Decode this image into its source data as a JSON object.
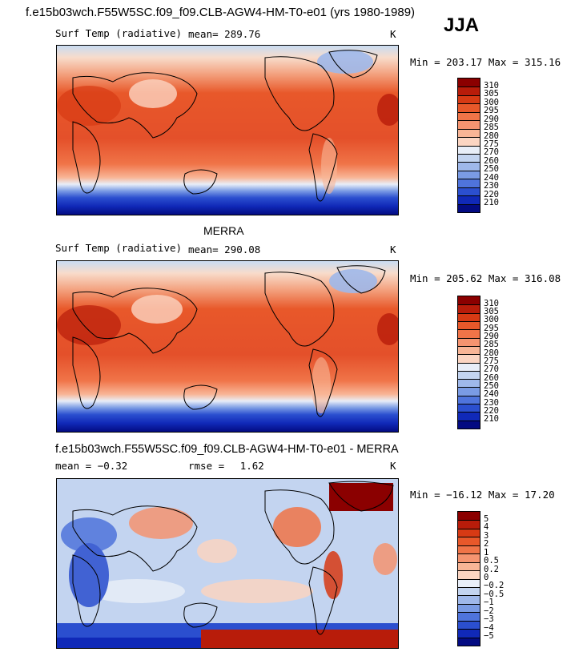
{
  "header": {
    "title": "f.e15b03wch.F55W5SC.f09_f09.CLB-AGW4-HM-T0-e01 (yrs 1980-1989)",
    "season": "JJA"
  },
  "panels": [
    {
      "id": "model",
      "variable": "Surf Temp (radiative)",
      "mean_label": "mean=",
      "mean": "289.76",
      "units": "K",
      "minmax": "Min = 203.17 Max = 315.16"
    },
    {
      "id": "obs",
      "title": "MERRA",
      "variable": "Surf Temp (radiative)",
      "mean_label": "mean=",
      "mean": "290.08",
      "units": "K",
      "minmax": "Min = 205.62 Max = 316.08"
    },
    {
      "id": "diff",
      "title": "f.e15b03wch.F55W5SC.f09_f09.CLB-AGW4-HM-T0-e01 - MERRA",
      "mean_label": "mean =",
      "mean": "−0.32",
      "rmse_label": "rmse =",
      "rmse": "1.62",
      "units": "K",
      "minmax": "Min = −16.12 Max =  17.20"
    }
  ],
  "colorbars": {
    "temperature": {
      "levels": [
        "310",
        "305",
        "300",
        "295",
        "290",
        "285",
        "280",
        "275",
        "270",
        "260",
        "250",
        "240",
        "230",
        "220",
        "210"
      ],
      "colors": [
        "#8b0000",
        "#b81c0a",
        "#d73a14",
        "#e8582a",
        "#f07448",
        "#f59470",
        "#f8b596",
        "#fbd5c2",
        "#e8eef8",
        "#c3d4f0",
        "#9fb8ea",
        "#7a9be4",
        "#4f74dc",
        "#2b4fcf",
        "#1029b8",
        "#030b82"
      ]
    },
    "difference": {
      "levels": [
        "5",
        "4",
        "3",
        "2",
        "1",
        "0.5",
        "0.2",
        "0",
        "−0.2",
        "−0.5",
        "−1",
        "−2",
        "−3",
        "−4",
        "−5"
      ],
      "colors": [
        "#8b0000",
        "#b81c0a",
        "#d73a14",
        "#e8582a",
        "#f07448",
        "#f59470",
        "#f8b596",
        "#fbd5c2",
        "#e8eef8",
        "#c3d4f0",
        "#9fb8ea",
        "#7a9be4",
        "#4f74dc",
        "#2b4fcf",
        "#1029b8",
        "#030b82"
      ]
    }
  }
}
